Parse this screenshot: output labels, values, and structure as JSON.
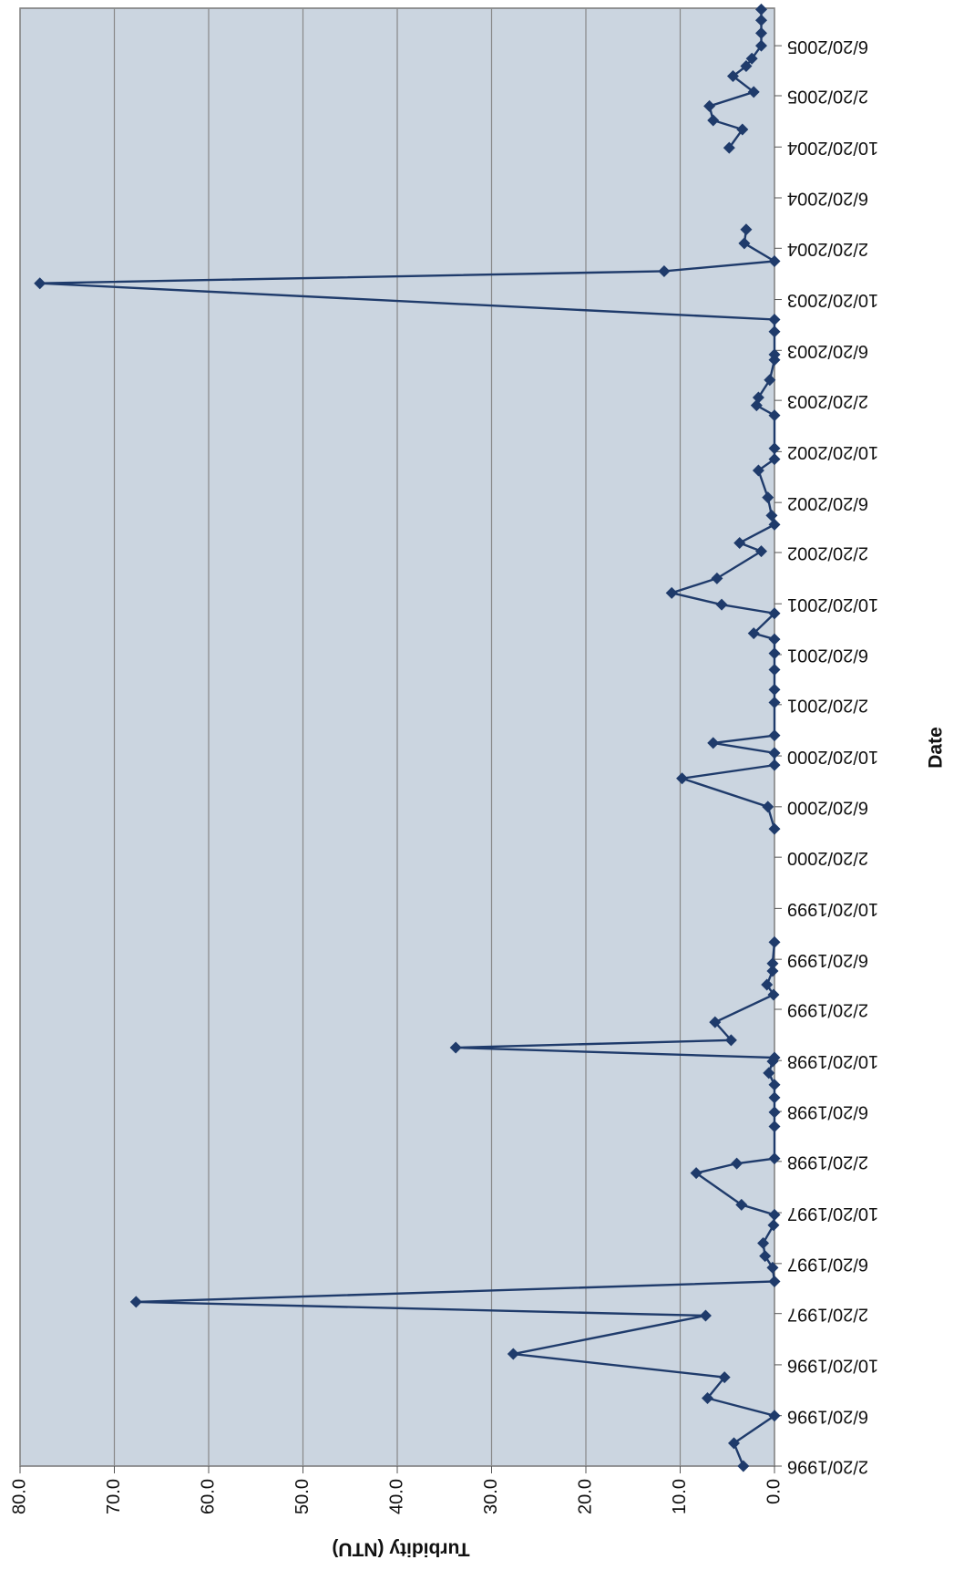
{
  "chart_data": {
    "type": "line",
    "xlabel": "Date",
    "ylabel": "Turbidity (NTU)",
    "color": "#1f3b6b",
    "grid": true,
    "x": [
      "1996-02-20",
      "1996-04-15",
      "1996-06-20",
      "1996-08-01",
      "1996-09-20",
      "1996-11-15",
      "1997-02-15",
      "1997-03-20",
      "1997-05-08",
      "1997-06-10",
      "1997-07-08",
      "1997-08-08",
      "1997-09-20",
      "1997-10-15",
      "1997-11-08",
      "1998-01-23",
      "1998-02-15",
      "1998-02-27",
      "1998-05-15",
      "1998-06-18",
      "1998-07-23",
      "1998-08-23",
      "1998-09-20",
      "1998-10-18",
      "1998-10-27",
      "1998-11-20",
      "1998-12-08",
      "1999-01-20",
      "1999-03-27",
      "1999-04-20",
      "1999-05-23",
      "1999-06-10",
      "1999-07-31",
      null,
      "2000-04-28",
      "2000-06-20",
      "2000-08-27",
      "2000-09-28",
      "2000-10-27",
      "2000-11-20",
      "2000-12-08",
      "2001-02-25",
      "2001-03-28",
      "2001-05-15",
      "2001-06-23",
      "2001-07-27",
      "2001-08-10",
      "2001-09-27",
      "2001-10-18",
      "2001-11-15",
      "2001-12-20",
      "2002-02-23",
      "2002-03-15",
      "2002-04-28",
      "2002-05-20",
      "2002-07-02",
      "2002-09-05",
      "2002-10-02",
      "2002-10-28",
      "2003-01-15",
      "2003-02-08",
      "2003-02-27",
      "2003-04-10",
      "2003-05-28",
      "2003-06-10",
      "2003-08-04",
      "2003-09-02",
      "2003-11-28",
      "2003-12-27",
      "2004-01-20",
      "2004-03-03",
      "2004-04-05",
      null,
      "2004-10-18",
      "2004-12-01",
      "2004-12-23",
      "2005-01-26",
      "2005-03-01",
      "2005-04-08",
      "2005-05-02",
      "2005-05-20",
      "2005-06-20",
      "2005-07-20",
      "2005-08-20",
      "2005-09-15"
    ],
    "values": [
      3.3,
      4.3,
      0,
      7.1,
      5.3,
      27.7,
      7.3,
      67.7,
      0,
      0.2,
      1.0,
      1.2,
      0.1,
      0,
      3.5,
      8.3,
      4.0,
      0,
      0,
      0,
      0,
      0,
      0.6,
      0.2,
      0,
      33.8,
      4.6,
      6.3,
      0.1,
      0.8,
      0.2,
      0.2,
      0,
      null,
      0,
      0.7,
      9.8,
      0,
      0,
      6.5,
      0,
      0,
      0,
      0,
      0,
      0,
      2.2,
      0,
      5.6,
      10.9,
      6.1,
      1.4,
      3.7,
      0,
      0.3,
      0.7,
      1.7,
      0,
      0,
      0,
      1.9,
      1.7,
      0.5,
      0,
      0,
      0,
      0,
      77.9,
      11.7,
      0,
      3.2,
      3.0,
      null,
      4.8,
      3.4,
      6.5,
      6.9,
      2.2,
      4.4,
      3.0,
      2.4,
      1.4,
      1.4,
      1.4,
      1.4
    ],
    "xlim": [
      "1996-02-20",
      "2005-09-18"
    ],
    "xticks": [
      {
        "value": "1996-02-20",
        "label": "2/20/1996"
      },
      {
        "value": "1996-06-20",
        "label": "6/20/1996"
      },
      {
        "value": "1996-10-20",
        "label": "10/20/1996"
      },
      {
        "value": "1997-02-20",
        "label": "2/20/1997"
      },
      {
        "value": "1997-06-20",
        "label": "6/20/1997"
      },
      {
        "value": "1997-10-20",
        "label": "10/20/1997"
      },
      {
        "value": "1998-02-20",
        "label": "2/20/1998"
      },
      {
        "value": "1998-06-20",
        "label": "6/20/1998"
      },
      {
        "value": "1998-10-20",
        "label": "10/20/1998"
      },
      {
        "value": "1999-02-20",
        "label": "2/20/1999"
      },
      {
        "value": "1999-06-20",
        "label": "6/20/1999"
      },
      {
        "value": "1999-10-20",
        "label": "10/20/1999"
      },
      {
        "value": "2000-02-20",
        "label": "2/20/2000"
      },
      {
        "value": "2000-06-20",
        "label": "6/20/2000"
      },
      {
        "value": "2000-10-20",
        "label": "10/20/2000"
      },
      {
        "value": "2001-02-20",
        "label": "2/20/2001"
      },
      {
        "value": "2001-06-20",
        "label": "6/20/2001"
      },
      {
        "value": "2001-10-20",
        "label": "10/20/2001"
      },
      {
        "value": "2002-02-20",
        "label": "2/20/2002"
      },
      {
        "value": "2002-06-20",
        "label": "6/20/2002"
      },
      {
        "value": "2002-10-20",
        "label": "10/20/2002"
      },
      {
        "value": "2003-02-20",
        "label": "2/20/2003"
      },
      {
        "value": "2003-06-20",
        "label": "6/20/2003"
      },
      {
        "value": "2003-10-20",
        "label": "10/20/2003"
      },
      {
        "value": "2004-02-20",
        "label": "2/20/2004"
      },
      {
        "value": "2004-06-20",
        "label": "6/20/2004"
      },
      {
        "value": "2004-10-20",
        "label": "10/20/2004"
      },
      {
        "value": "2005-02-20",
        "label": "2/20/2005"
      },
      {
        "value": "2005-06-20",
        "label": "6/20/2005"
      }
    ],
    "ylim": [
      0,
      80
    ],
    "yticks": [
      {
        "value": 0,
        "label": "0.0"
      },
      {
        "value": 10,
        "label": "10.0"
      },
      {
        "value": 20,
        "label": "20.0"
      },
      {
        "value": 30,
        "label": "30.0"
      },
      {
        "value": 40,
        "label": "40.0"
      },
      {
        "value": 50,
        "label": "50.0"
      },
      {
        "value": 60,
        "label": "60.0"
      },
      {
        "value": 70,
        "label": "70.0"
      },
      {
        "value": 80,
        "label": "80.0"
      }
    ]
  }
}
